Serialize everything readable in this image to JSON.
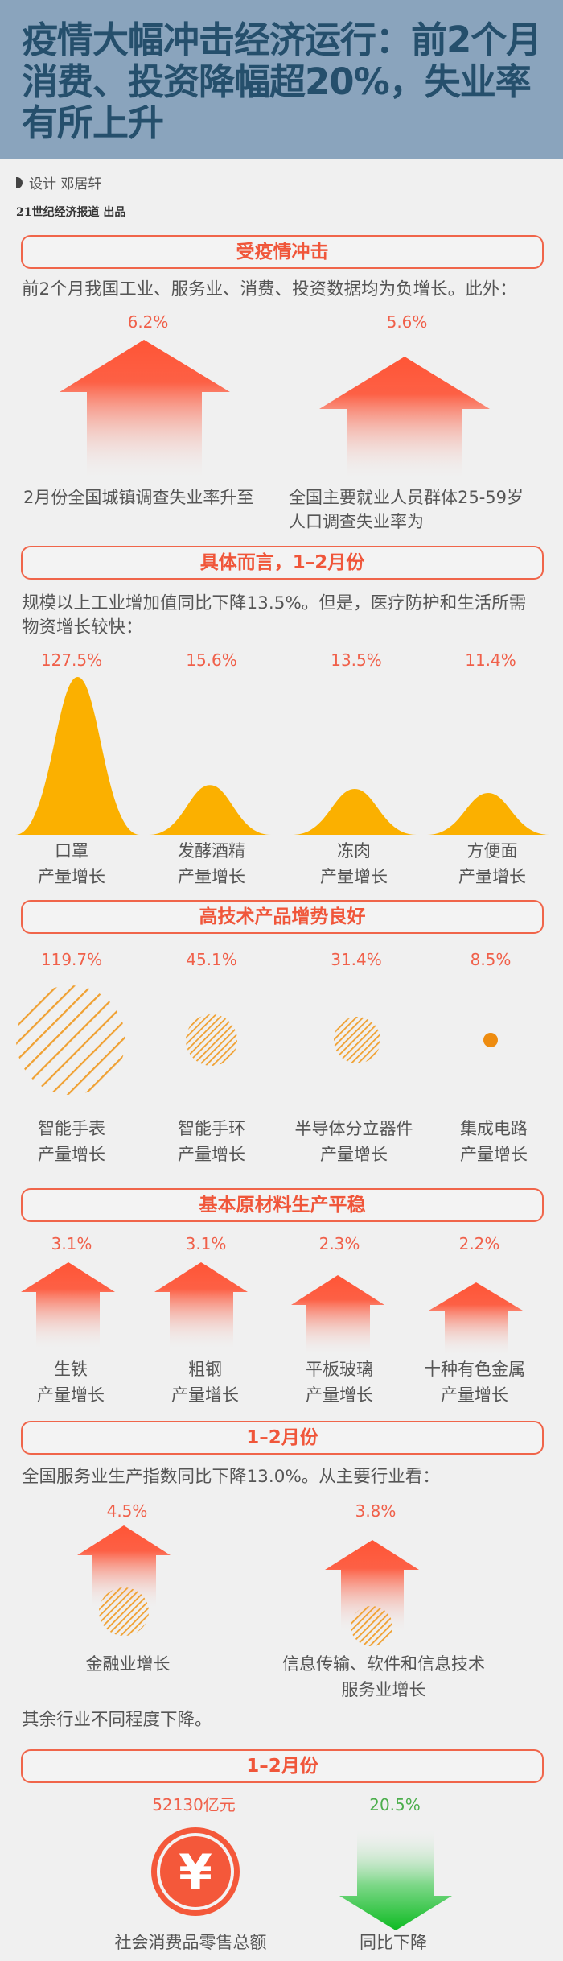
{
  "header": {
    "title_lines": [
      "疫情大幅冲击经济运行：前2个月",
      "消费、投资降幅超20%，失业率",
      "有所上升"
    ]
  },
  "credits": {
    "designer": "设计  邓居轩",
    "publisher": "21世纪经济报道  出品"
  },
  "colors": {
    "header_bg": "#8aa4bd",
    "title": "#254f6c",
    "accent_red": "#f0563a",
    "bell_gold": "#fbb000",
    "hatch_orange": "#f0a030",
    "down_green": "#1dbb2c"
  },
  "sections": [
    {
      "title": "受疫情冲击",
      "text_lines": [
        "前2个月我国工业、服务业、消费、投资数据均为负增长。此外："
      ],
      "items": [
        {
          "value": "6.2%",
          "label_lines": [
            "2月份全国城镇调查失业率升至"
          ],
          "icon": "up-arrow"
        },
        {
          "value": "5.6%",
          "label_lines": [
            "全国主要就业人员群体25-59岁",
            "人口调查失业率为"
          ],
          "icon": "up-arrow"
        }
      ]
    },
    {
      "title": "具体而言，1–2月份",
      "text_lines": [
        "规模以上工业增加值同比下降13.5%。但是，医疗防护和生活所需",
        "物资增长较快："
      ],
      "items": [
        {
          "value": "127.5%",
          "label_lines": [
            "口罩",
            "产量增长"
          ],
          "level": 127.5,
          "icon": "bell-curve"
        },
        {
          "value": "15.6%",
          "label_lines": [
            "发酵酒精",
            "产量增长"
          ],
          "level": 15.6,
          "icon": "bell-curve"
        },
        {
          "value": "13.5%",
          "label_lines": [
            "冻肉",
            "产量增长"
          ],
          "level": 13.5,
          "icon": "bell-curve"
        },
        {
          "value": "11.4%",
          "label_lines": [
            "方便面",
            "产量增长"
          ],
          "level": 11.4,
          "icon": "bell-curve"
        }
      ]
    },
    {
      "title": "高技术产品增势良好",
      "items": [
        {
          "value": "119.7%",
          "label_lines": [
            "智能手表",
            "产量增长"
          ],
          "level": 119.7,
          "icon": "hatched-circle"
        },
        {
          "value": "45.1%",
          "label_lines": [
            "智能手环",
            "产量增长"
          ],
          "level": 45.1,
          "icon": "hatched-circle"
        },
        {
          "value": "31.4%",
          "label_lines": [
            "半导体分立器件",
            "产量增长"
          ],
          "level": 31.4,
          "icon": "hatched-circle"
        },
        {
          "value": "8.5%",
          "label_lines": [
            "集成电路",
            "产量增长"
          ],
          "level": 8.5,
          "icon": "dot"
        }
      ]
    },
    {
      "title": "基本原材料生产平稳",
      "items": [
        {
          "value": "3.1%",
          "label_lines": [
            "生铁",
            "产量增长"
          ],
          "icon": "up-arrow"
        },
        {
          "value": "3.1%",
          "label_lines": [
            "粗钢",
            "产量增长"
          ],
          "icon": "up-arrow"
        },
        {
          "value": "2.3%",
          "label_lines": [
            "平板玻璃",
            "产量增长"
          ],
          "icon": "up-arrow"
        },
        {
          "value": "2.2%",
          "label_lines": [
            "十种有色金属",
            "产量增长"
          ],
          "icon": "up-arrow"
        }
      ]
    },
    {
      "title": "1–2月份",
      "text_lines": [
        "全国服务业生产指数同比下降13.0%。从主要行业看："
      ],
      "items": [
        {
          "value": "4.5%",
          "label_lines": [
            "金融业增长"
          ],
          "icon": "up-arrow"
        },
        {
          "value": "3.8%",
          "label_lines": [
            "信息传输、软件和信息技术",
            "服务业增长"
          ],
          "icon": "up-arrow"
        }
      ],
      "footer": "其余行业不同程度下降。"
    },
    {
      "title": "1–2月份",
      "items": [
        {
          "value": "52130亿元",
          "label_lines": [
            "社会消费品零售总额"
          ],
          "icon": "yen-coin"
        },
        {
          "value": "20.5%",
          "label_lines": [
            "同比下降"
          ],
          "icon": "down-arrow"
        }
      ]
    }
  ]
}
